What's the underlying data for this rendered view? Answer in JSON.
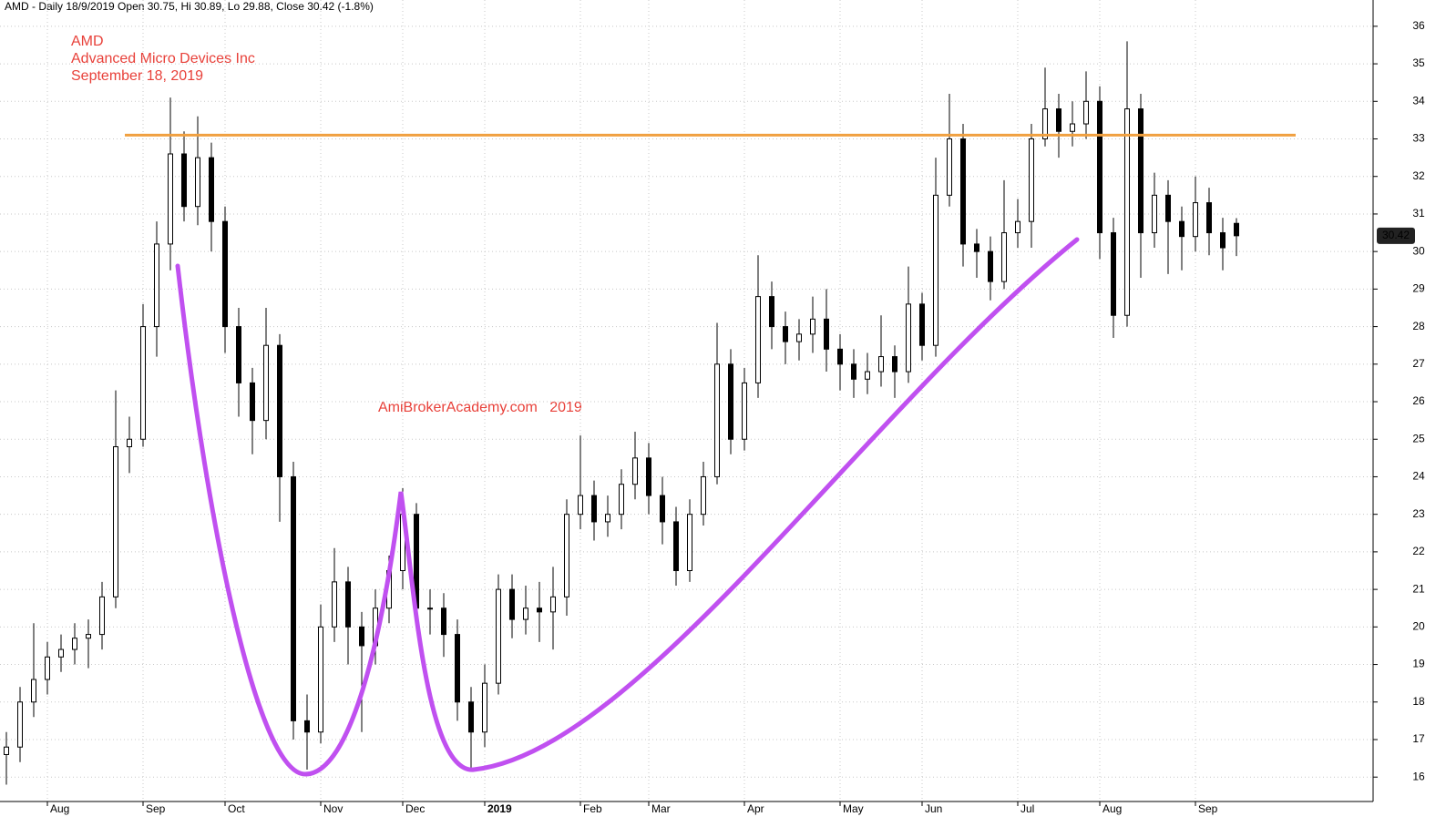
{
  "chart_data": {
    "type": "candlestick",
    "header": "AMD - Daily 18/9/2019 Open 30.75, Hi 30.89, Lo 29.88, Close 30.42 (-1.8%)",
    "annotations": [
      "AMD",
      "Advanced Micro Devices Inc",
      "September 18, 2019",
      "AmiBrokerAcademy.com   2019"
    ],
    "categories": [
      null,
      null,
      null,
      "Aug",
      null,
      null,
      null,
      null,
      null,
      null,
      "Sep",
      null,
      null,
      null,
      null,
      null,
      "Oct",
      null,
      null,
      null,
      null,
      null,
      null,
      "Nov",
      null,
      null,
      null,
      null,
      null,
      "Dec",
      null,
      null,
      null,
      null,
      null,
      "2019",
      null,
      null,
      null,
      null,
      null,
      null,
      "Feb",
      null,
      null,
      null,
      null,
      "Mar",
      null,
      null,
      null,
      null,
      null,
      null,
      "Apr",
      null,
      null,
      null,
      null,
      null,
      null,
      "May",
      null,
      null,
      null,
      null,
      null,
      "Jun",
      null,
      null,
      null,
      null,
      null,
      null,
      "Jul",
      null,
      null,
      null,
      null,
      null,
      "Aug",
      null,
      null,
      null,
      null,
      null,
      null,
      "Sep",
      null,
      null,
      null
    ],
    "open": [
      16.6,
      16.8,
      18.0,
      18.6,
      19.2,
      19.4,
      19.7,
      19.8,
      20.8,
      24.8,
      25.0,
      28.0,
      30.2,
      32.6,
      31.2,
      32.5,
      30.8,
      28.0,
      26.5,
      25.5,
      27.5,
      24.0,
      17.5,
      17.2,
      20.0,
      21.2,
      20.0,
      19.5,
      20.5,
      21.5,
      23.0,
      20.5,
      20.5,
      19.8,
      18.0,
      17.2,
      18.5,
      21.0,
      20.2,
      20.5,
      20.4,
      20.8,
      23.0,
      23.5,
      22.8,
      23.0,
      23.8,
      24.5,
      23.5,
      22.8,
      21.5,
      23.0,
      24.0,
      27.0,
      25.0,
      26.5,
      28.8,
      28.0,
      27.6,
      27.8,
      28.2,
      27.4,
      27.0,
      26.6,
      26.8,
      27.2,
      26.8,
      28.6,
      27.5,
      31.5,
      33.0,
      30.2,
      30.0,
      29.2,
      30.5,
      30.8,
      33.0,
      33.8,
      33.2,
      33.4,
      34.0,
      30.5,
      28.3,
      33.8,
      30.5,
      31.5,
      30.8,
      30.4,
      31.3,
      30.5,
      30.75
    ],
    "high": [
      17.2,
      18.4,
      20.1,
      19.6,
      19.8,
      20.1,
      20.2,
      21.2,
      26.3,
      25.6,
      28.6,
      30.8,
      34.1,
      33.2,
      33.6,
      32.9,
      31.2,
      28.5,
      26.9,
      28.5,
      27.8,
      24.4,
      18.2,
      20.6,
      22.1,
      21.6,
      20.4,
      21.0,
      21.9,
      23.7,
      23.3,
      21.0,
      20.9,
      20.2,
      18.4,
      19.0,
      21.4,
      21.4,
      21.1,
      21.2,
      21.6,
      23.4,
      25.1,
      23.9,
      23.5,
      24.2,
      25.2,
      24.9,
      24.0,
      23.2,
      23.4,
      24.4,
      28.1,
      27.4,
      26.9,
      29.9,
      29.2,
      28.4,
      28.2,
      28.8,
      29.0,
      27.8,
      27.4,
      27.3,
      28.3,
      27.5,
      29.6,
      28.9,
      32.5,
      34.2,
      33.4,
      30.6,
      30.4,
      31.9,
      31.4,
      33.4,
      34.9,
      34.2,
      34.0,
      34.8,
      34.4,
      30.9,
      35.6,
      34.2,
      32.1,
      31.9,
      31.2,
      32.0,
      31.7,
      30.9,
      30.89
    ],
    "low": [
      15.8,
      16.4,
      17.6,
      18.2,
      18.8,
      19.0,
      18.9,
      19.4,
      20.5,
      24.1,
      24.8,
      27.2,
      29.5,
      30.8,
      30.7,
      30.0,
      27.3,
      25.6,
      24.6,
      25.0,
      22.8,
      17.0,
      16.2,
      16.9,
      19.6,
      19.0,
      17.2,
      19.0,
      20.1,
      21.0,
      19.9,
      19.8,
      19.2,
      17.5,
      16.2,
      16.8,
      18.2,
      19.7,
      19.8,
      19.6,
      19.4,
      20.3,
      22.6,
      22.3,
      22.4,
      22.6,
      23.4,
      23.0,
      22.2,
      21.1,
      21.2,
      22.7,
      23.8,
      24.6,
      24.7,
      26.1,
      27.4,
      27.0,
      27.1,
      27.3,
      26.8,
      26.3,
      26.1,
      26.2,
      26.4,
      26.1,
      26.5,
      27.1,
      27.2,
      31.2,
      29.6,
      29.3,
      28.7,
      29.0,
      30.1,
      30.1,
      32.8,
      32.5,
      32.8,
      33.0,
      29.8,
      27.7,
      28.0,
      29.3,
      30.1,
      29.4,
      29.5,
      30.0,
      29.9,
      29.5,
      29.88
    ],
    "close": [
      16.8,
      18.0,
      18.6,
      19.2,
      19.4,
      19.7,
      19.8,
      20.8,
      24.8,
      25.0,
      28.0,
      30.2,
      32.6,
      31.2,
      32.5,
      30.8,
      28.0,
      26.5,
      25.5,
      27.5,
      24.0,
      17.5,
      17.2,
      20.0,
      21.2,
      20.0,
      19.5,
      20.5,
      21.5,
      23.0,
      20.5,
      20.5,
      19.8,
      18.0,
      17.2,
      18.5,
      21.0,
      20.2,
      20.5,
      20.4,
      20.8,
      23.0,
      23.5,
      22.8,
      23.0,
      23.8,
      24.5,
      23.5,
      22.8,
      21.5,
      23.0,
      24.0,
      27.0,
      25.0,
      26.5,
      28.8,
      28.0,
      27.6,
      27.8,
      28.2,
      27.4,
      27.0,
      26.6,
      26.8,
      27.2,
      26.8,
      28.6,
      27.5,
      31.5,
      33.0,
      30.2,
      30.0,
      29.2,
      30.5,
      30.8,
      33.0,
      33.8,
      33.2,
      33.4,
      34.0,
      30.5,
      28.3,
      33.8,
      30.5,
      31.5,
      30.8,
      30.4,
      31.3,
      30.5,
      30.1,
      30.42
    ],
    "resistance": 33.1,
    "resistance_color": "#f0a040",
    "ylim": [
      15.35,
      36.7
    ],
    "yticks": [
      16,
      17,
      18,
      19,
      20,
      21,
      22,
      23,
      24,
      25,
      26,
      27,
      28,
      29,
      30,
      31,
      32,
      33,
      34,
      35,
      36
    ],
    "grid": true
  }
}
